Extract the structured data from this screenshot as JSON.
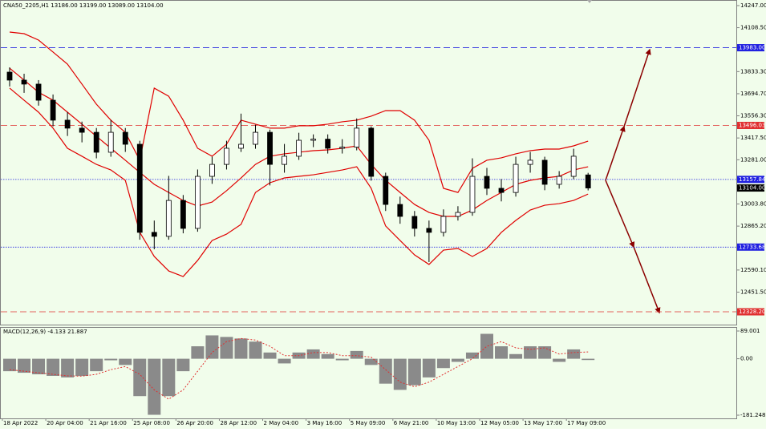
{
  "chart_data": [
    {
      "type": "candlestick",
      "title": "CNA50_2205,H1  13186.00 13199.00 13089.00 13104.00",
      "categories": [
        "18 Apr 2022",
        null,
        null,
        "20 Apr 04:00",
        null,
        null,
        "21 Apr 16:00",
        null,
        null,
        "25 Apr 08:00",
        null,
        null,
        "26 Apr 20:00",
        null,
        null,
        "28 Apr 12:00",
        null,
        null,
        "2 May 04:00",
        null,
        null,
        "3 May 16:00",
        null,
        null,
        "5 May 09:00",
        null,
        null,
        "6 May 21:00",
        null,
        null,
        "10 May 13:00",
        null,
        null,
        "12 May 05:00",
        null,
        null,
        "13 May 17:00",
        null,
        null,
        "17 May 09:00",
        null
      ],
      "open": [
        13830,
        13780,
        13755,
        13654,
        13529,
        13479,
        13453,
        13328,
        13453,
        13378,
        12826,
        12801,
        13026,
        12851,
        13177,
        13252,
        13353,
        13378,
        13453,
        13252,
        13303,
        13403,
        13410,
        13353,
        13360,
        13479,
        13177,
        13001,
        12926,
        12851,
        12826,
        12926,
        12951,
        13177,
        13102,
        13076,
        13252,
        13278,
        13127,
        13177,
        13186
      ],
      "high": [
        13860,
        13820,
        13780,
        13690,
        13580,
        13520,
        13480,
        13530,
        13480,
        13400,
        12900,
        13180,
        13060,
        13220,
        13300,
        13400,
        13570,
        13500,
        13470,
        13380,
        13450,
        13440,
        13440,
        13410,
        13540,
        13490,
        13200,
        13050,
        12960,
        12900,
        12970,
        12990,
        13290,
        13230,
        13160,
        13300,
        13330,
        13300,
        13210,
        13350,
        13199
      ],
      "low": [
        13740,
        13700,
        13620,
        13490,
        13430,
        13390,
        13290,
        13300,
        13330,
        12780,
        12720,
        12780,
        12820,
        12830,
        13130,
        13220,
        13330,
        13350,
        13120,
        13200,
        13280,
        13360,
        13320,
        13320,
        13340,
        13150,
        12960,
        12880,
        12800,
        12640,
        12800,
        12900,
        12930,
        13060,
        13020,
        13050,
        13200,
        13090,
        13100,
        13160,
        13089
      ],
      "close": [
        13780,
        13755,
        13654,
        13529,
        13479,
        13453,
        13328,
        13453,
        13378,
        12826,
        12801,
        13026,
        12851,
        13177,
        13252,
        13353,
        13378,
        13453,
        13252,
        13303,
        13403,
        13410,
        13353,
        13360,
        13479,
        13177,
        13001,
        12926,
        12851,
        12826,
        12926,
        12951,
        13177,
        13102,
        13076,
        13252,
        13278,
        13127,
        13177,
        13303,
        13104
      ],
      "up_color": "#ffffff",
      "down_color": "#000000",
      "wick_color": "#000000",
      "series": [
        {
          "color": "#e00000",
          "values": [
            14081,
            14071,
            14031,
            13956,
            13880,
            13755,
            13629,
            13529,
            13453,
            13278,
            13730,
            13679,
            13529,
            13353,
            13303,
            13378,
            13529,
            13504,
            13479,
            13479,
            13494,
            13494,
            13504,
            13519,
            13529,
            13554,
            13589,
            13589,
            13529,
            13403,
            13102,
            13076,
            13227,
            13278,
            13293,
            13318,
            13338,
            13348,
            13348,
            13368,
            13398
          ]
        },
        {
          "color": "#e00000",
          "values": [
            13855,
            13780,
            13704,
            13654,
            13579,
            13504,
            13428,
            13353,
            13278,
            13202,
            13127,
            13076,
            13026,
            12991,
            13016,
            13087,
            13167,
            13252,
            13303,
            13318,
            13328,
            13338,
            13343,
            13353,
            13368,
            13252,
            13152,
            13076,
            13001,
            12951,
            12926,
            12926,
            12966,
            13026,
            13076,
            13127,
            13152,
            13167,
            13177,
            13217,
            13237
          ]
        },
        {
          "color": "#e00000",
          "values": [
            13730,
            13654,
            13579,
            13479,
            13353,
            13303,
            13252,
            13217,
            13152,
            12826,
            12675,
            12584,
            12549,
            12650,
            12775,
            12815,
            12876,
            13076,
            13137,
            13167,
            13177,
            13187,
            13202,
            13217,
            13237,
            13102,
            12866,
            12775,
            12685,
            12625,
            12715,
            12725,
            12675,
            12725,
            12826,
            12901,
            12966,
            12996,
            13006,
            13026,
            13066
          ]
        }
      ],
      "levels": [
        {
          "value": 13983,
          "label": "13983.00",
          "color": "#2020e0",
          "style": "dashed"
        },
        {
          "value": 13496.03,
          "label": "13496.03",
          "color": "#e03030",
          "style": "dashed"
        },
        {
          "value": 13157.84,
          "label": "13157.84",
          "color": "#2020e0",
          "style": "dotted"
        },
        {
          "value": 13104,
          "label": "13104.00",
          "color": "#000000",
          "style": "none"
        },
        {
          "value": 12733.68,
          "label": "12733.68",
          "color": "#2020e0",
          "style": "dotted"
        },
        {
          "value": 12328.2,
          "label": "12328.20",
          "color": "#e03030",
          "style": "dashed"
        }
      ],
      "ylim": [
        12248,
        14272
      ],
      "yticks": [
        {
          "value": 14247,
          "label": "14247.00"
        },
        {
          "value": 14108.5,
          "label": "14108.50"
        },
        {
          "value": 13833.3,
          "label": "13833.30"
        },
        {
          "value": 13694.7,
          "label": "13694.70"
        },
        {
          "value": 13556.3,
          "label": "13556.30"
        },
        {
          "value": 13417.5,
          "label": "13417.50"
        },
        {
          "value": 13281,
          "label": "13281.00"
        },
        {
          "value": 13003.8,
          "label": "13003.80"
        },
        {
          "value": 12865.2,
          "label": "12865.20"
        },
        {
          "value": 12590.1,
          "label": "12590.10"
        },
        {
          "value": 12451.5,
          "label": "12451.50"
        }
      ]
    },
    {
      "type": "macd",
      "title": "MACD(12,26,9) -4.133 21.887",
      "values": [
        -40,
        -45,
        -50,
        -55,
        -60,
        -55,
        -40,
        -5,
        -20,
        -120,
        -180,
        -120,
        -40,
        40,
        75,
        70,
        65,
        55,
        20,
        -15,
        20,
        30,
        15,
        -5,
        25,
        -20,
        -80,
        -100,
        -85,
        -60,
        -30,
        -10,
        20,
        80,
        40,
        15,
        40,
        40,
        -10,
        30,
        -4.133
      ],
      "signal": [
        -35,
        -40,
        -45,
        -50,
        -55,
        -56,
        -50,
        -35,
        -25,
        -50,
        -100,
        -130,
        -100,
        -40,
        20,
        55,
        65,
        60,
        40,
        10,
        10,
        20,
        20,
        10,
        10,
        5,
        -35,
        -75,
        -90,
        -75,
        -50,
        -25,
        0,
        40,
        55,
        35,
        30,
        35,
        15,
        20,
        21.887
      ],
      "color": "#8a8a8a",
      "signal_color": "#e03030",
      "ylim": [
        -191.5,
        101.9
      ],
      "yticks": [
        89.001,
        {
          "value": 0,
          "label": "0.00"
        },
        -181.248
      ]
    }
  ]
}
